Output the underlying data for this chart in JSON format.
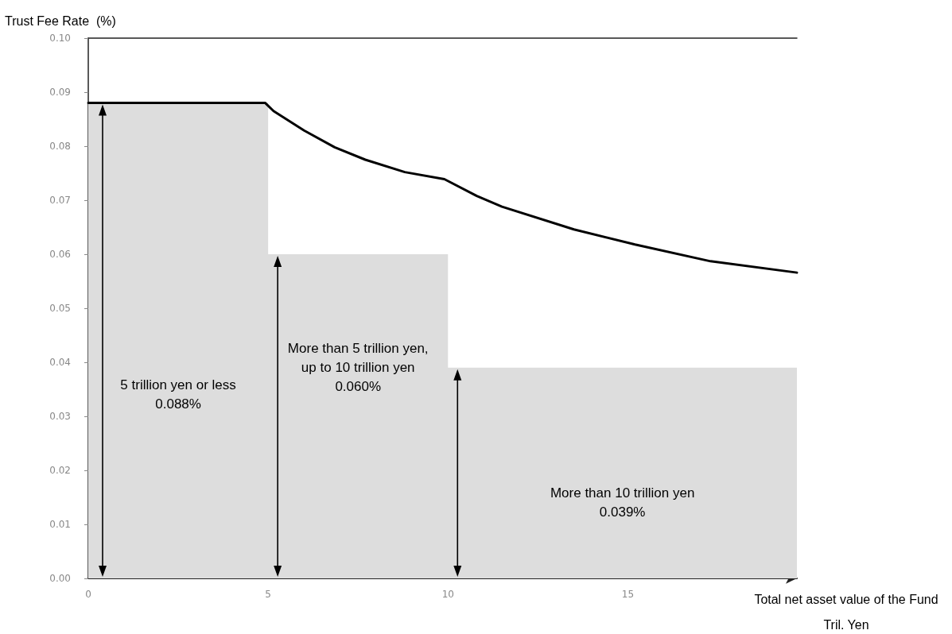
{
  "chart_data": {
    "type": "line",
    "ylabel": "Trust Fee Rate  (%)",
    "xlabel": "Total net asset value of the Fund\nTril. Yen",
    "xlim": [
      0,
      19.7
    ],
    "xticks": [
      0,
      5,
      10,
      15
    ],
    "ylim": [
      0,
      0.1
    ],
    "yticks": [
      {
        "value": 0,
        "label": "0.00"
      },
      0.01,
      0.02,
      0.03,
      0.04,
      0.05,
      0.06,
      0.07,
      0.08,
      0.09,
      {
        "value": 0.1,
        "label": "0.10"
      }
    ],
    "grid": false,
    "marker": "none",
    "line_style": "solid",
    "series": [
      {
        "type": "area",
        "color": "#dddddd",
        "x": [
          0,
          5,
          5,
          10,
          10,
          19.7
        ],
        "values": [
          0.088,
          0.088,
          0.06,
          0.06,
          0.039,
          0.039
        ]
      },
      {
        "color": "#000000",
        "x": [
          0,
          4.92,
          5.15,
          6.0,
          6.85,
          7.7,
          8.8,
          9.9,
          10.8,
          11.5,
          13.5,
          15.2,
          17.3,
          19.7
        ],
        "values": [
          0.088,
          0.088,
          0.0865,
          0.0829,
          0.0798,
          0.0775,
          0.0752,
          0.0739,
          0.0708,
          0.0688,
          0.0646,
          0.0618,
          0.0587,
          0.0566
        ]
      }
    ],
    "annotations": [
      "5 trillion yen or less\n0.088%",
      "More than 5 trillion yen,\nup to 10 trillion yen\n0.060%",
      "More than 10 trillion yen\n0.039%"
    ]
  }
}
